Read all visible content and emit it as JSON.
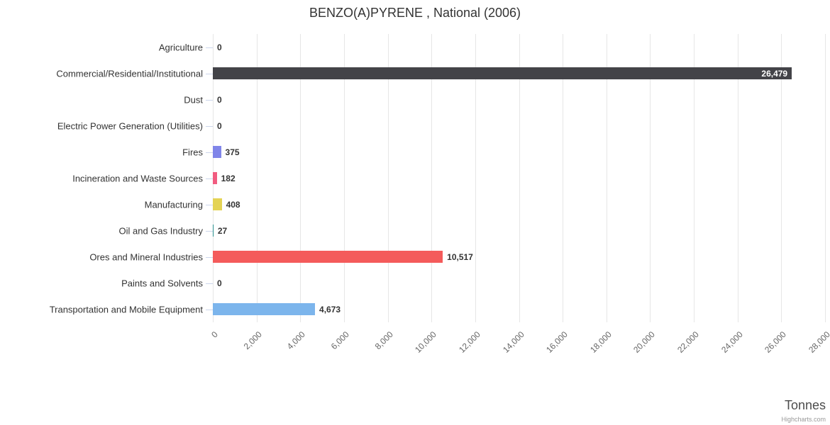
{
  "chart_data": {
    "type": "bar",
    "title": "BENZO(A)PYRENE , National (2006)",
    "xlabel": "Tonnes",
    "ylabel": "",
    "categories": [
      "Agriculture",
      "Commercial/Residential/Institutional",
      "Dust",
      "Electric Power Generation (Utilities)",
      "Fires",
      "Incineration and Waste Sources",
      "Manufacturing",
      "Oil and Gas Industry",
      "Ores and Mineral Industries",
      "Paints and Solvents",
      "Transportation and Mobile Equipment"
    ],
    "values": [
      0,
      26479,
      0,
      0,
      375,
      182,
      408,
      27,
      10517,
      0,
      4673
    ],
    "value_labels": [
      "0",
      "26,479",
      "0",
      "0",
      "375",
      "182",
      "408",
      "27",
      "10,517",
      "0",
      "4,673"
    ],
    "colors": [
      "#7cb5ec",
      "#434348",
      "#90ed7d",
      "#f7a35c",
      "#8085e9",
      "#f15c80",
      "#e4d354",
      "#2b908f",
      "#f45b5b",
      "#91e8e1",
      "#7cb5ec"
    ],
    "xlim": [
      0,
      28000
    ],
    "x_ticks": [
      0,
      2000,
      4000,
      6000,
      8000,
      10000,
      12000,
      14000,
      16000,
      18000,
      20000,
      22000,
      24000,
      26000,
      28000
    ],
    "x_tick_labels": [
      "0",
      "2,000",
      "4,000",
      "6,000",
      "8,000",
      "10,000",
      "12,000",
      "14,000",
      "16,000",
      "18,000",
      "20,000",
      "22,000",
      "24,000",
      "26,000",
      "28,000"
    ],
    "grid": true,
    "legend": "none",
    "credit": "Highcharts.com"
  }
}
